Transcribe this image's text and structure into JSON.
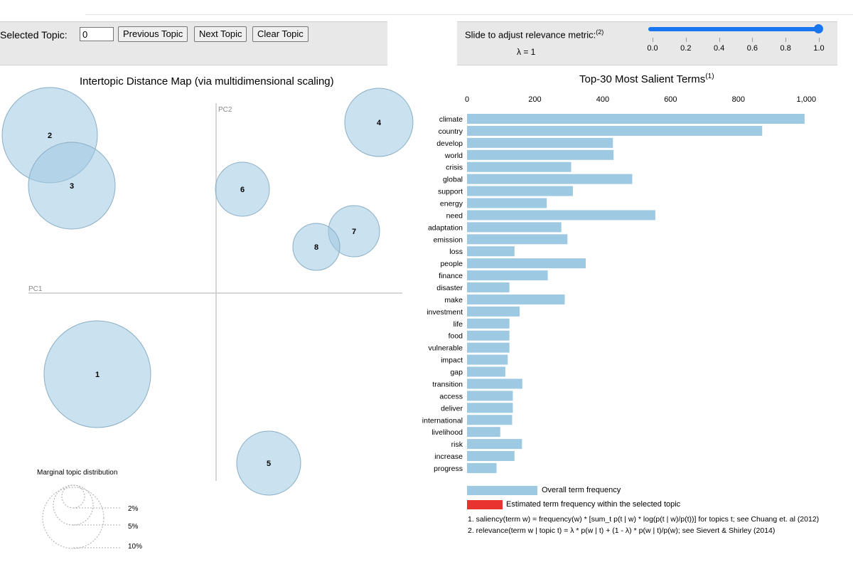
{
  "controls": {
    "selected_topic_label": "Selected Topic:",
    "selected_topic_value": "0",
    "previous_label": "Previous Topic",
    "next_label": "Next Topic",
    "clear_label": "Clear Topic"
  },
  "relevance": {
    "label": "Slide to adjust relevance metric:",
    "label_note": "(2)",
    "lambda_text": "λ = 1",
    "value": 1.0,
    "ticks": [
      "0.0",
      "0.2",
      "0.4",
      "0.6",
      "0.8",
      "1.0"
    ]
  },
  "intertopic_map": {
    "title": "Intertopic Distance Map (via multidimensional scaling)",
    "pc1_label": "PC1",
    "pc2_label": "PC2",
    "topics": [
      "1",
      "2",
      "3",
      "4",
      "5",
      "6",
      "7",
      "8"
    ],
    "marginal_title": "Marginal topic distribution",
    "marginal_labels": [
      "2%",
      "5%",
      "10%"
    ]
  },
  "chart_data": {
    "type": "bar",
    "title": "Top-30 Most Salient Terms",
    "title_note": "(1)",
    "orientation": "horizontal",
    "xlim": [
      0,
      1000
    ],
    "x_ticks": [
      "0",
      "200",
      "400",
      "600",
      "800",
      "1,000"
    ],
    "categories": [
      "climate",
      "country",
      "develop",
      "world",
      "crisis",
      "global",
      "support",
      "energy",
      "need",
      "adaptation",
      "emission",
      "loss",
      "people",
      "finance",
      "disaster",
      "make",
      "investment",
      "life",
      "food",
      "vulnerable",
      "impact",
      "gap",
      "transition",
      "access",
      "deliver",
      "international",
      "livelihood",
      "risk",
      "increase",
      "progress"
    ],
    "series": [
      {
        "name": "Overall term frequency",
        "color": "#9ec9e2",
        "values": [
          995,
          870,
          430,
          432,
          307,
          487,
          312,
          235,
          555,
          278,
          296,
          140,
          350,
          238,
          125,
          288,
          155,
          125,
          125,
          125,
          120,
          113,
          163,
          135,
          135,
          133,
          98,
          162,
          140,
          87
        ]
      }
    ],
    "legend": [
      {
        "label": "Overall term frequency",
        "color": "#9ec9e2"
      },
      {
        "label": "Estimated term frequency within the selected topic",
        "color": "#e8332e"
      }
    ]
  },
  "footnotes": [
    "1. saliency(term w) = frequency(w) * [sum_t p(t | w) * log(p(t | w)/p(t))] for topics t; see Chuang et. al (2012)",
    "2. relevance(term w | topic t) = λ * p(w | t) + (1 - λ) * p(w | t)/p(w); see Sievert & Shirley (2014)"
  ]
}
